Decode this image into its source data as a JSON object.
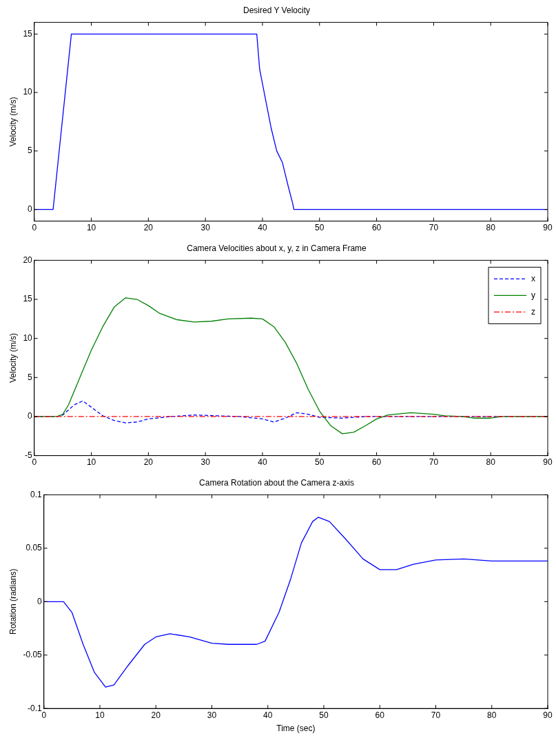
{
  "chart_data": [
    {
      "type": "line",
      "title": "Desired Y Velocity",
      "ylabel": "Velocity (m/s)",
      "xlim": [
        0,
        90
      ],
      "xticks": [
        0,
        10,
        20,
        30,
        40,
        50,
        60,
        70,
        80,
        90
      ],
      "ylim": [
        -1,
        16
      ],
      "yticks": [
        0,
        5,
        10,
        15
      ],
      "grid": false,
      "legend": false,
      "marker": "none",
      "series": [
        {
          "color": "#0000ff",
          "line_style": "solid",
          "x": [
            0,
            3.3,
            6.5,
            39,
            39.5,
            40.5,
            41.5,
            42.5,
            43.5,
            44.5,
            45.3,
            45.5,
            90
          ],
          "values": [
            0,
            0,
            15,
            15,
            12,
            9.5,
            7,
            5,
            4,
            2,
            0.5,
            0,
            0
          ]
        }
      ]
    },
    {
      "type": "line",
      "title": "Camera Velocities about x, y, z in Camera Frame",
      "ylabel": "Velocity (m/s)",
      "xlim": [
        0,
        90
      ],
      "xticks": [
        0,
        10,
        20,
        30,
        40,
        50,
        60,
        70,
        80,
        90
      ],
      "ylim": [
        -5,
        20
      ],
      "yticks": [
        -5,
        0,
        5,
        10,
        15,
        20
      ],
      "grid": false,
      "legend": "top right",
      "marker": "none",
      "series": [
        {
          "name": "x",
          "color": "#0000ff",
          "line_style": "dashed",
          "x": [
            0,
            4,
            5,
            7,
            8.5,
            10,
            12,
            14,
            16,
            18,
            20,
            24,
            28,
            32,
            36,
            40,
            42,
            44,
            46,
            48,
            50,
            54,
            58,
            90
          ],
          "values": [
            0,
            0,
            0.2,
            1.5,
            2,
            1.2,
            0.1,
            -0.5,
            -0.8,
            -0.7,
            -0.3,
            0,
            0.2,
            0.1,
            0,
            -0.3,
            -0.7,
            -0.2,
            0.5,
            0.3,
            -0.1,
            -0.2,
            0,
            0
          ]
        },
        {
          "name": "y",
          "color": "#008000",
          "line_style": "solid",
          "x": [
            0,
            4,
            5,
            6,
            8,
            10,
            12,
            14,
            16,
            18,
            20,
            22,
            25,
            28,
            31,
            34,
            38,
            40,
            42,
            44,
            46,
            48,
            50,
            52,
            54,
            56,
            58,
            60,
            62,
            66,
            70,
            72,
            75,
            77,
            80,
            82,
            90
          ],
          "values": [
            0,
            0,
            0.3,
            1.5,
            5,
            8.5,
            11.5,
            14,
            15.2,
            15,
            14.2,
            13.2,
            12.4,
            12.1,
            12.2,
            12.5,
            12.6,
            12.5,
            11.5,
            9.5,
            6.8,
            3.5,
            0.7,
            -1.2,
            -2.2,
            -2,
            -1.2,
            -0.3,
            0.2,
            0.5,
            0.3,
            0.1,
            0,
            -0.2,
            -0.2,
            0,
            0
          ]
        },
        {
          "name": "z",
          "color": "#ff0000",
          "line_style": "dashdot",
          "x": [
            0,
            90
          ],
          "values": [
            0,
            0
          ]
        }
      ]
    },
    {
      "type": "line",
      "title": "Camera Rotation about the Camera z-axis",
      "xlabel": "Time (sec)",
      "ylabel": "Rotation (radians)",
      "xlim": [
        0,
        90
      ],
      "xticks": [
        0,
        10,
        20,
        30,
        40,
        50,
        60,
        70,
        80,
        90
      ],
      "ylim": [
        -0.1,
        0.1
      ],
      "yticks": [
        -0.1,
        -0.05,
        0,
        0.05,
        0.1
      ],
      "grid": false,
      "legend": false,
      "marker": "none",
      "series": [
        {
          "color": "#0000ff",
          "line_style": "solid",
          "x": [
            0,
            3.5,
            5,
            7,
            9,
            11,
            12.5,
            15,
            18,
            20,
            22.5,
            26,
            30,
            33,
            38,
            39.5,
            42,
            44,
            46,
            48,
            49,
            51,
            54,
            57,
            60,
            63,
            66,
            70,
            75,
            80,
            90
          ],
          "values": [
            0,
            0,
            -0.01,
            -0.04,
            -0.066,
            -0.08,
            -0.078,
            -0.06,
            -0.04,
            -0.033,
            -0.03,
            -0.033,
            -0.039,
            -0.04,
            -0.04,
            -0.037,
            -0.01,
            0.02,
            0.055,
            0.075,
            0.079,
            0.075,
            0.058,
            0.04,
            0.03,
            0.03,
            0.035,
            0.039,
            0.04,
            0.038,
            0.038
          ]
        }
      ]
    }
  ]
}
